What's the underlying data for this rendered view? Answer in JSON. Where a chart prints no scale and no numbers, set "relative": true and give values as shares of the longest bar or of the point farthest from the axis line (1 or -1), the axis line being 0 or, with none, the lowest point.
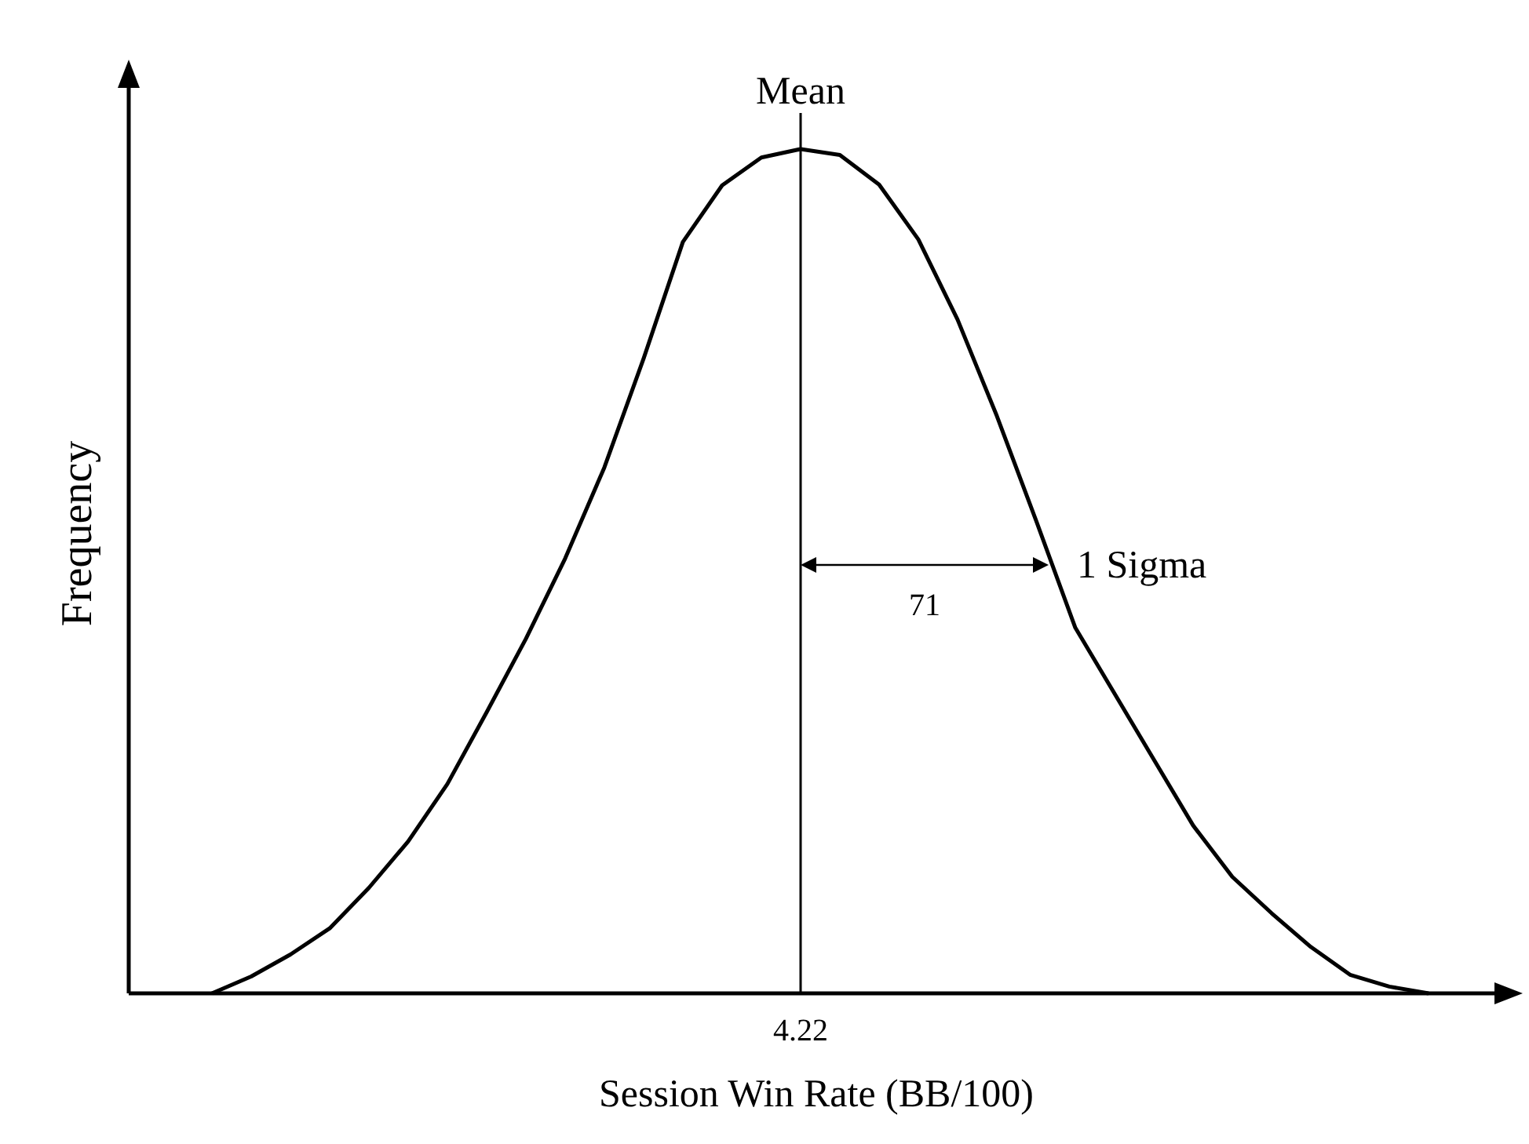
{
  "chart_data": {
    "type": "line",
    "relative": true,
    "xlabel": "Session Win Rate (BB/100)",
    "ylabel": "Frequency",
    "marker": "none",
    "line_style": "solid",
    "categories": [
      null,
      null,
      null,
      null,
      null,
      null,
      null,
      null,
      null,
      null,
      null,
      null,
      null,
      null,
      null,
      null,
      null,
      null,
      null,
      null,
      null,
      null,
      null,
      null,
      null,
      null,
      null,
      null,
      null,
      null,
      null,
      null
    ],
    "series": [
      {
        "color": "#000000",
        "values": [
          0,
          0.02,
          0.046,
          0.077,
          0.125,
          0.18,
          0.248,
          0.333,
          0.42,
          0.515,
          0.623,
          0.752,
          0.89,
          0.957,
          0.99,
          1,
          0.993,
          0.958,
          0.893,
          0.798,
          0.684,
          0.56,
          0.433,
          0.355,
          0.277,
          0.199,
          0.138,
          0.095,
          0.055,
          0.022,
          0.008,
          0
        ]
      }
    ],
    "ref_lines": [
      {
        "axis": "x",
        "label": "Mean",
        "color": "#000000"
      }
    ],
    "annotations": [
      "4.22",
      "1 Sigma",
      "71"
    ]
  }
}
